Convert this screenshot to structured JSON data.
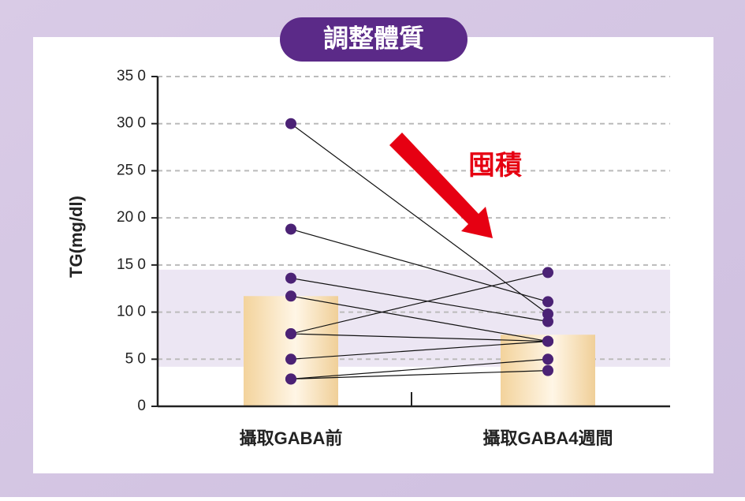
{
  "chart_data": {
    "type": "bar",
    "title": "調整體質",
    "ylabel": "TG(mg/dl)",
    "annotation": "囤積",
    "categories": [
      "攝取GABA前",
      "攝取GABA4週間"
    ],
    "values": [
      117,
      76
    ],
    "color": "#f3d39c",
    "reference_band": [
      42,
      145
    ],
    "band_color": "#ece6f3",
    "pairs_color": "#4b2275",
    "pairs": [
      {
        "values": [
          300,
          98
        ]
      },
      {
        "values": [
          188,
          111
        ]
      },
      {
        "values": [
          136,
          90
        ]
      },
      {
        "values": [
          117,
          69
        ]
      },
      {
        "values": [
          77,
          142
        ]
      },
      {
        "values": [
          77,
          69
        ]
      },
      {
        "values": [
          50,
          69
        ]
      },
      {
        "values": [
          29,
          50
        ]
      },
      {
        "values": [
          29,
          38
        ]
      }
    ],
    "ylim": [
      0,
      350
    ],
    "yticks": [
      0,
      {
        "value": 50,
        "label": "5 0"
      },
      {
        "value": 100,
        "label": "10 0"
      },
      {
        "value": 150,
        "label": "15 0"
      },
      {
        "value": 200,
        "label": "20 0"
      },
      {
        "value": 250,
        "label": "25 0"
      },
      {
        "value": 300,
        "label": "30 0"
      },
      {
        "value": 350,
        "label": "35 0"
      }
    ],
    "grid": true
  }
}
